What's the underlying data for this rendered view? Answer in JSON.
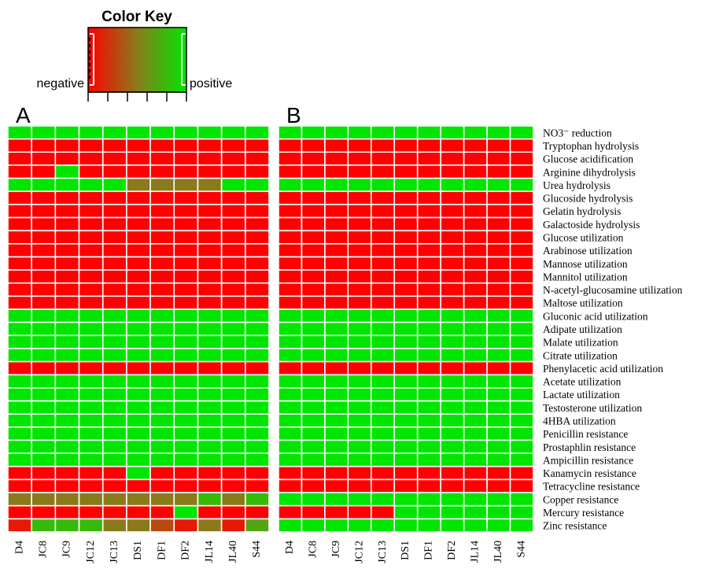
{
  "colors": {
    "negative": "#ff0000",
    "mid": "#8a7a1c",
    "positive": "#00e600"
  },
  "color_key": {
    "title": "Color Key",
    "low_label": "negative",
    "high_label": "positive"
  },
  "chart_data": [
    {
      "type": "heatmap",
      "panel": "A",
      "legend": "color key, top-left",
      "value_range": [
        0,
        1
      ],
      "x": [
        "D4",
        "JC8",
        "JC9",
        "JC12",
        "JC13",
        "DS1",
        "DF1",
        "DF2",
        "JL14",
        "JL40",
        "S44"
      ],
      "y": [
        "NO3⁻ reduction",
        "Tryptophan hydrolysis",
        "Glucose acidification",
        "Arginine dihydrolysis",
        "Urea hydrolysis",
        "Glucoside hydrolysis",
        "Gelatin hydrolysis",
        "Galactoside hydrolysis",
        "Glucose utilization",
        "Arabinose utilization",
        "Mannose utilization",
        "Mannitol utilization",
        "N-acetyl-glucosamine utilization",
        "Maltose utilization",
        "Gluconic acid utilization",
        "Adipate utilization",
        "Malate utilization",
        "Citrate utilization",
        "Phenylacetic acid utilization",
        "Acetate utilization",
        "Lactate utilization",
        "Testosterone utilization",
        "4HBA utilization",
        "Penicillin resistance",
        "Prostaphlin resistance",
        "Ampicillin resistance",
        "Kanamycin resistance",
        "Tetracycline resistance",
        "Copper resistance",
        "Mercury resistance",
        "Zinc resistance"
      ],
      "z": [
        [
          1,
          1,
          1,
          1,
          1,
          1,
          1,
          1,
          1,
          1,
          1
        ],
        [
          0,
          0,
          0,
          0,
          0,
          0,
          0,
          0,
          0,
          0,
          0
        ],
        [
          0,
          0,
          0,
          0,
          0,
          0,
          0,
          0,
          0,
          0,
          0
        ],
        [
          0,
          0,
          1,
          0,
          0,
          0,
          0,
          0,
          0,
          0,
          0
        ],
        [
          1,
          1,
          1,
          1,
          1,
          0.5,
          0.5,
          0.5,
          0.5,
          1,
          1
        ],
        [
          0,
          0,
          0,
          0,
          0,
          0,
          0,
          0,
          0,
          0,
          0
        ],
        [
          0,
          0,
          0,
          0,
          0,
          0,
          0,
          0,
          0,
          0,
          0
        ],
        [
          0,
          0,
          0,
          0,
          0,
          0,
          0,
          0,
          0,
          0,
          0
        ],
        [
          0,
          0,
          0,
          0,
          0,
          0,
          0,
          0,
          0,
          0,
          0
        ],
        [
          0,
          0,
          0,
          0,
          0,
          0,
          0,
          0,
          0,
          0,
          0
        ],
        [
          0,
          0,
          0,
          0,
          0,
          0,
          0,
          0,
          0,
          0,
          0
        ],
        [
          0,
          0,
          0,
          0,
          0,
          0,
          0,
          0,
          0,
          0,
          0
        ],
        [
          0,
          0,
          0,
          0,
          0,
          0,
          0,
          0,
          0,
          0,
          0
        ],
        [
          0,
          0,
          0,
          0,
          0,
          0,
          0,
          0,
          0,
          0,
          0
        ],
        [
          1,
          1,
          1,
          1,
          1,
          1,
          1,
          1,
          1,
          1,
          1
        ],
        [
          1,
          1,
          1,
          1,
          1,
          1,
          1,
          1,
          1,
          1,
          1
        ],
        [
          1,
          1,
          1,
          1,
          1,
          1,
          1,
          1,
          1,
          1,
          1
        ],
        [
          1,
          1,
          1,
          1,
          1,
          1,
          1,
          1,
          1,
          1,
          1
        ],
        [
          0,
          0,
          0,
          0,
          0,
          0,
          0,
          0,
          0,
          0,
          0
        ],
        [
          1,
          1,
          1,
          1,
          1,
          1,
          1,
          1,
          1,
          1,
          1
        ],
        [
          1,
          1,
          1,
          1,
          1,
          1,
          1,
          1,
          1,
          1,
          1
        ],
        [
          1,
          1,
          1,
          1,
          1,
          1,
          1,
          1,
          1,
          1,
          1
        ],
        [
          1,
          1,
          1,
          1,
          1,
          1,
          1,
          1,
          1,
          1,
          1
        ],
        [
          1,
          1,
          1,
          1,
          1,
          1,
          1,
          1,
          1,
          1,
          1
        ],
        [
          1,
          1,
          1,
          1,
          1,
          1,
          1,
          1,
          1,
          1,
          1
        ],
        [
          1,
          1,
          1,
          1,
          1,
          1,
          1,
          1,
          1,
          1,
          1
        ],
        [
          0,
          0,
          0,
          0,
          0,
          1,
          0,
          0,
          0,
          0,
          0
        ],
        [
          0,
          0,
          0,
          0,
          0,
          0,
          0,
          0,
          0,
          0,
          0
        ],
        [
          0.5,
          0.5,
          0.5,
          0.5,
          0.5,
          0.5,
          0.5,
          0.5,
          0.8,
          0.5,
          0.8
        ],
        [
          0,
          0,
          0,
          0,
          0,
          0,
          0,
          1,
          0,
          0,
          0
        ],
        [
          0.1,
          0.8,
          0.8,
          0.8,
          0.5,
          0.5,
          0.3,
          0.1,
          0.5,
          0.1,
          0.7
        ]
      ]
    },
    {
      "type": "heatmap",
      "panel": "B",
      "value_range": [
        0,
        1
      ],
      "x": [
        "D4",
        "JC8",
        "JC9",
        "JC12",
        "JC13",
        "DS1",
        "DF1",
        "DF2",
        "JL14",
        "JL40",
        "S44"
      ],
      "y": [
        "NO3⁻ reduction",
        "Tryptophan hydrolysis",
        "Glucose acidification",
        "Arginine dihydrolysis",
        "Urea hydrolysis",
        "Glucoside hydrolysis",
        "Gelatin hydrolysis",
        "Galactoside hydrolysis",
        "Glucose utilization",
        "Arabinose utilization",
        "Mannose utilization",
        "Mannitol utilization",
        "N-acetyl-glucosamine utilization",
        "Maltose utilization",
        "Gluconic acid utilization",
        "Adipate utilization",
        "Malate utilization",
        "Citrate utilization",
        "Phenylacetic acid utilization",
        "Acetate utilization",
        "Lactate utilization",
        "Testosterone utilization",
        "4HBA utilization",
        "Penicillin resistance",
        "Prostaphlin resistance",
        "Ampicillin resistance",
        "Kanamycin resistance",
        "Tetracycline resistance",
        "Copper resistance",
        "Mercury resistance",
        "Zinc resistance"
      ],
      "z": [
        [
          1,
          1,
          1,
          1,
          1,
          1,
          1,
          1,
          1,
          1,
          1
        ],
        [
          0,
          0,
          0,
          0,
          0,
          0,
          0,
          0,
          0,
          0,
          0
        ],
        [
          0,
          0,
          0,
          0,
          0,
          0,
          0,
          0,
          0,
          0,
          0
        ],
        [
          0,
          0,
          0,
          0,
          0,
          0,
          0,
          0,
          0,
          0,
          0
        ],
        [
          1,
          1,
          1,
          1,
          1,
          1,
          1,
          1,
          1,
          1,
          1
        ],
        [
          0,
          0,
          0,
          0,
          0,
          0,
          0,
          0,
          0,
          0,
          0
        ],
        [
          0,
          0,
          0,
          0,
          0,
          0,
          0,
          0,
          0,
          0,
          0
        ],
        [
          0,
          0,
          0,
          0,
          0,
          0,
          0,
          0,
          0,
          0,
          0
        ],
        [
          0,
          0,
          0,
          0,
          0,
          0,
          0,
          0,
          0,
          0,
          0
        ],
        [
          0,
          0,
          0,
          0,
          0,
          0,
          0,
          0,
          0,
          0,
          0
        ],
        [
          0,
          0,
          0,
          0,
          0,
          0,
          0,
          0,
          0,
          0,
          0
        ],
        [
          0,
          0,
          0,
          0,
          0,
          0,
          0,
          0,
          0,
          0,
          0
        ],
        [
          0,
          0,
          0,
          0,
          0,
          0,
          0,
          0,
          0,
          0,
          0
        ],
        [
          0,
          0,
          0,
          0,
          0,
          0,
          0,
          0,
          0,
          0,
          0
        ],
        [
          1,
          1,
          1,
          1,
          1,
          1,
          1,
          1,
          1,
          1,
          1
        ],
        [
          1,
          1,
          1,
          1,
          1,
          1,
          1,
          1,
          1,
          1,
          1
        ],
        [
          1,
          1,
          1,
          1,
          1,
          1,
          1,
          1,
          1,
          1,
          1
        ],
        [
          1,
          1,
          1,
          1,
          1,
          1,
          1,
          1,
          1,
          1,
          1
        ],
        [
          0,
          0,
          0,
          0,
          0,
          0,
          0,
          0,
          0,
          0,
          0
        ],
        [
          1,
          1,
          1,
          1,
          1,
          1,
          1,
          1,
          1,
          1,
          1
        ],
        [
          1,
          1,
          1,
          1,
          1,
          1,
          1,
          1,
          1,
          1,
          1
        ],
        [
          1,
          1,
          1,
          1,
          1,
          1,
          1,
          1,
          1,
          1,
          1
        ],
        [
          1,
          1,
          1,
          1,
          1,
          1,
          1,
          1,
          1,
          1,
          1
        ],
        [
          1,
          1,
          1,
          1,
          1,
          1,
          1,
          1,
          1,
          1,
          1
        ],
        [
          1,
          1,
          1,
          1,
          1,
          1,
          1,
          1,
          1,
          1,
          1
        ],
        [
          1,
          1,
          1,
          1,
          1,
          1,
          1,
          1,
          1,
          1,
          1
        ],
        [
          0,
          0,
          0,
          0,
          0,
          0,
          0,
          0,
          0,
          0,
          0
        ],
        [
          0,
          0,
          0,
          0,
          0,
          0,
          0,
          0,
          0,
          0,
          0
        ],
        [
          1,
          1,
          1,
          1,
          1,
          1,
          1,
          1,
          1,
          1,
          1
        ],
        [
          0,
          0,
          0,
          0,
          0,
          1,
          1,
          1,
          1,
          1,
          1
        ],
        [
          1,
          1,
          1,
          1,
          1,
          1,
          1,
          1,
          1,
          1,
          1
        ]
      ]
    }
  ]
}
